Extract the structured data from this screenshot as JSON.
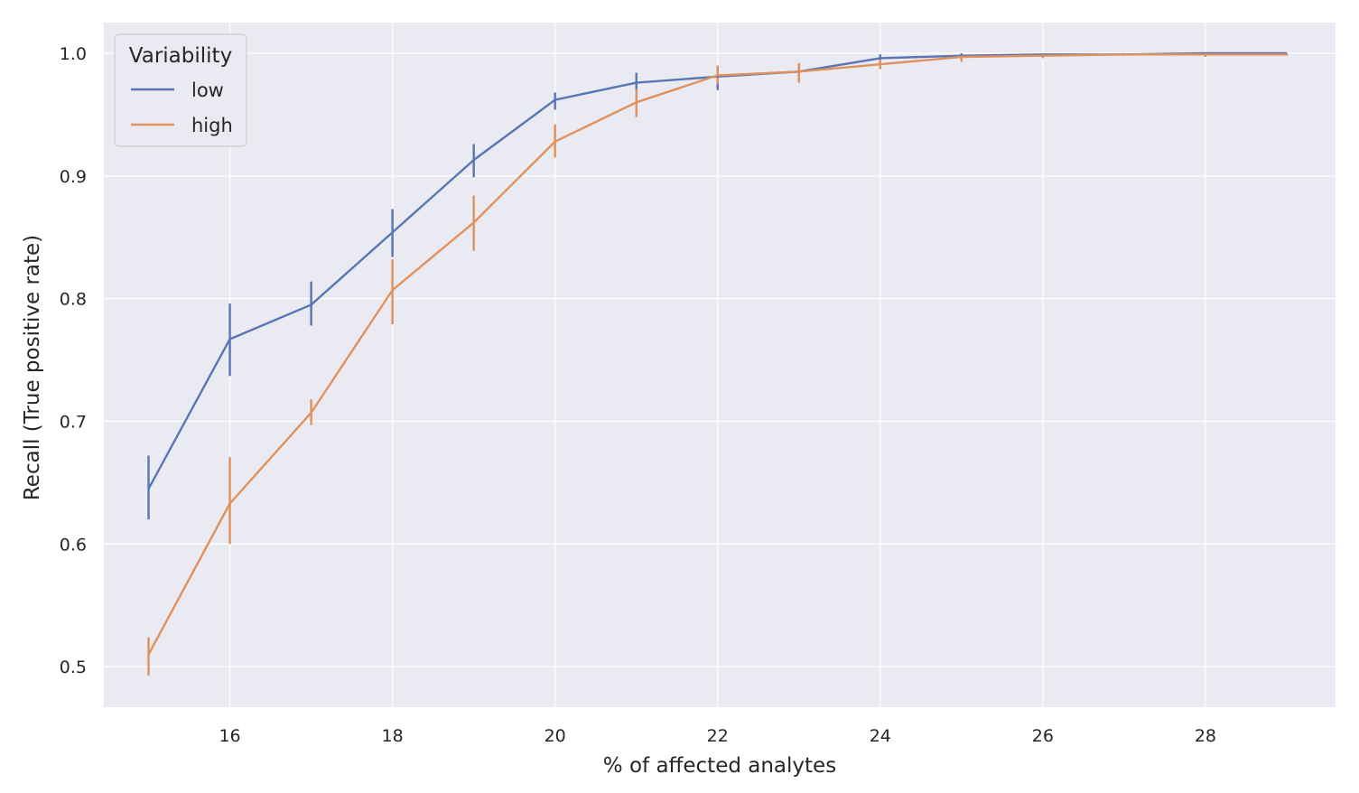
{
  "chart_data": {
    "type": "line",
    "xlabel": "% of affected analytes",
    "ylabel": "Recall (True positive rate)",
    "xlim": [
      14.45,
      29.6
    ],
    "ylim": [
      0.467,
      1.025
    ],
    "x_ticks": [
      16,
      18,
      20,
      22,
      24,
      26,
      28
    ],
    "x_tick_labels": [
      "16",
      "18",
      "20",
      "22",
      "24",
      "26",
      "28"
    ],
    "y_ticks": [
      0.5,
      0.6,
      0.7,
      0.8,
      0.9,
      1.0
    ],
    "y_tick_labels": [
      "0.5",
      "0.6",
      "0.7",
      "0.8",
      "0.9",
      "1.0"
    ],
    "grid": true,
    "legend": {
      "title": "Variability",
      "placement": "top-left"
    },
    "x": [
      15,
      16,
      17,
      18,
      19,
      20,
      21,
      22,
      23,
      24,
      25,
      26,
      27,
      28,
      29
    ],
    "series": [
      {
        "name": "low",
        "color": "#5975b4",
        "values": [
          0.645,
          0.767,
          0.795,
          0.854,
          0.913,
          0.962,
          0.976,
          0.981,
          0.985,
          0.996,
          0.998,
          0.999,
          0.999,
          1.0,
          1.0
        ],
        "err_low": [
          0.62,
          0.737,
          0.778,
          0.834,
          0.899,
          0.954,
          0.968,
          0.97,
          0.978,
          0.992,
          0.995,
          0.998,
          0.998,
          0.999,
          0.999
        ],
        "err_high": [
          0.672,
          0.796,
          0.814,
          0.873,
          0.926,
          0.968,
          0.984,
          0.99,
          0.991,
          0.999,
          1.0,
          1.0,
          1.0,
          1.0,
          1.0
        ]
      },
      {
        "name": "high",
        "color": "#e0915c",
        "values": [
          0.51,
          0.633,
          0.707,
          0.807,
          0.862,
          0.928,
          0.96,
          0.982,
          0.985,
          0.991,
          0.997,
          0.998,
          0.999,
          0.999,
          0.999
        ],
        "err_low": [
          0.493,
          0.6,
          0.697,
          0.779,
          0.839,
          0.915,
          0.948,
          0.975,
          0.976,
          0.987,
          0.993,
          0.996,
          0.998,
          0.997,
          0.998
        ],
        "err_high": [
          0.524,
          0.671,
          0.718,
          0.832,
          0.884,
          0.942,
          0.971,
          0.99,
          0.992,
          0.995,
          0.999,
          1.0,
          1.0,
          1.0,
          1.0
        ]
      }
    ]
  }
}
